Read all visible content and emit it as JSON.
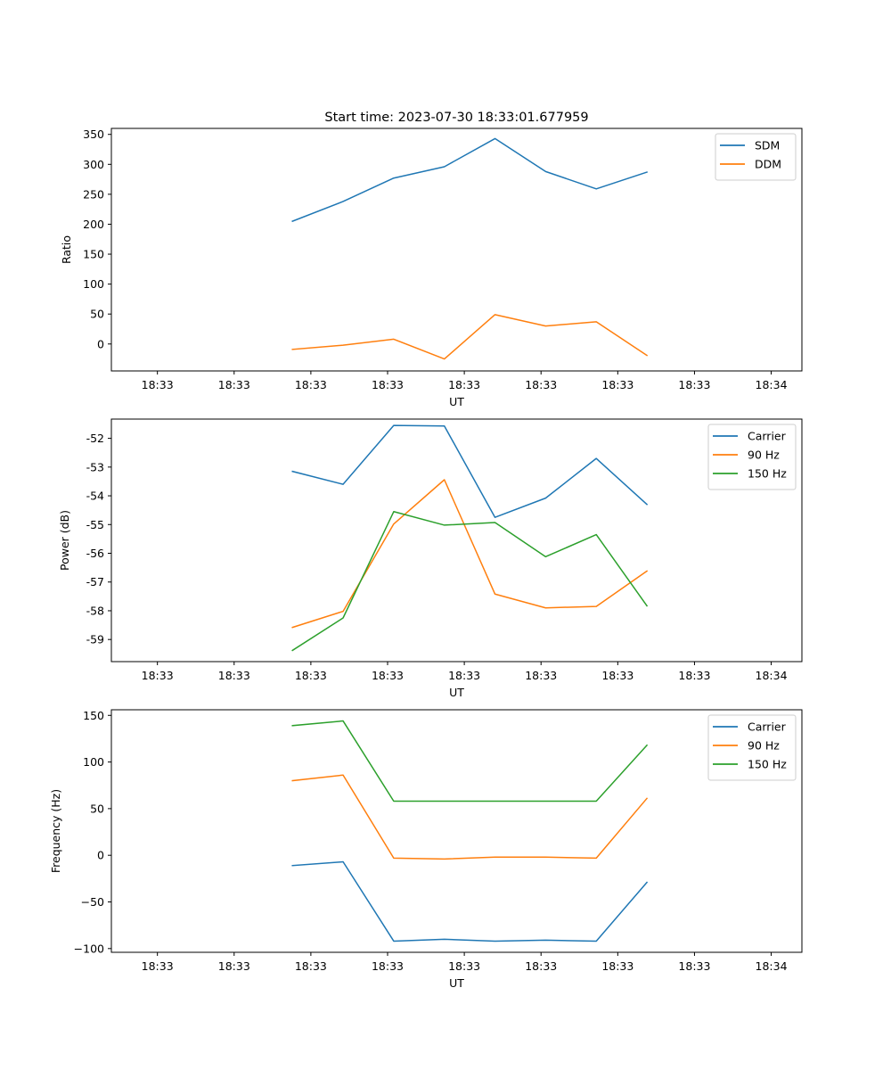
{
  "chart_data": [
    {
      "type": "line",
      "title": "Start time: 2023-07-30 18:33:01.677959",
      "xlabel": "UT",
      "ylabel": "Ratio",
      "x_domain_seconds": [
        0.12,
        0.57
      ],
      "xtick_seconds": [
        0.15,
        0.2,
        0.25,
        0.3,
        0.35,
        0.4,
        0.45,
        0.5,
        0.55
      ],
      "xtick_labels": [
        "18:33",
        "18:33",
        "18:33",
        "18:33",
        "18:33",
        "18:33",
        "18:33",
        "18:33",
        "18:34"
      ],
      "x_seconds": [
        0.238,
        0.271,
        0.304,
        0.337,
        0.37,
        0.403,
        0.436,
        0.469
      ],
      "ylim": [
        -45,
        360
      ],
      "yticks": [
        0,
        50,
        100,
        150,
        200,
        250,
        300,
        350
      ],
      "legend_position": "upper right",
      "grid": false,
      "series": [
        {
          "name": "SDM",
          "color": "#1f77b4",
          "values": [
            205,
            238,
            277,
            296,
            343,
            288,
            259,
            287
          ]
        },
        {
          "name": "DDM",
          "color": "#ff7f0e",
          "values": [
            -9,
            -2,
            8,
            -25,
            49,
            30,
            37,
            -19
          ]
        }
      ]
    },
    {
      "type": "line",
      "title": "",
      "xlabel": "UT",
      "ylabel": "Power (dB)",
      "x_domain_seconds": [
        0.12,
        0.57
      ],
      "xtick_seconds": [
        0.15,
        0.2,
        0.25,
        0.3,
        0.35,
        0.4,
        0.45,
        0.5,
        0.55
      ],
      "xtick_labels": [
        "18:33",
        "18:33",
        "18:33",
        "18:33",
        "18:33",
        "18:33",
        "18:33",
        "18:33",
        "18:34"
      ],
      "x_seconds": [
        0.238,
        0.271,
        0.304,
        0.337,
        0.37,
        0.403,
        0.436,
        0.469
      ],
      "ylim": [
        -59.77,
        -51.33
      ],
      "yticks": [
        -59,
        -58,
        -57,
        -56,
        -55,
        -54,
        -53,
        -52
      ],
      "legend_position": "upper right",
      "grid": false,
      "series": [
        {
          "name": "Carrier",
          "color": "#1f77b4",
          "values": [
            -53.15,
            -53.6,
            -51.55,
            -51.57,
            -54.75,
            -54.08,
            -52.7,
            -54.3
          ]
        },
        {
          "name": "90 Hz",
          "color": "#ff7f0e",
          "values": [
            -58.58,
            -58.02,
            -54.98,
            -53.44,
            -57.42,
            -57.9,
            -57.85,
            -56.62
          ]
        },
        {
          "name": "150 Hz",
          "color": "#2ca02c",
          "values": [
            -59.38,
            -58.25,
            -54.55,
            -55.02,
            -54.93,
            -56.12,
            -55.35,
            -57.83
          ]
        }
      ]
    },
    {
      "type": "line",
      "title": "",
      "xlabel": "UT",
      "ylabel": "Frequency (Hz)",
      "x_domain_seconds": [
        0.12,
        0.57
      ],
      "xtick_seconds": [
        0.15,
        0.2,
        0.25,
        0.3,
        0.35,
        0.4,
        0.45,
        0.5,
        0.55
      ],
      "xtick_labels": [
        "18:33",
        "18:33",
        "18:33",
        "18:33",
        "18:33",
        "18:33",
        "18:33",
        "18:33",
        "18:34"
      ],
      "x_seconds": [
        0.238,
        0.271,
        0.304,
        0.337,
        0.37,
        0.403,
        0.436,
        0.469
      ],
      "ylim": [
        -104,
        156
      ],
      "yticks": [
        -100,
        -50,
        0,
        50,
        100,
        150
      ],
      "ytick_labels": [
        "−100",
        "−50",
        "0",
        "50",
        "100",
        "150"
      ],
      "legend_position": "upper right",
      "grid": false,
      "series": [
        {
          "name": "Carrier",
          "color": "#1f77b4",
          "values": [
            -11,
            -7,
            -92,
            -90,
            -92,
            -91,
            -92,
            -29
          ]
        },
        {
          "name": "90 Hz",
          "color": "#ff7f0e",
          "values": [
            80,
            86,
            -3,
            -4,
            -2,
            -2,
            -3,
            61
          ]
        },
        {
          "name": "150 Hz",
          "color": "#2ca02c",
          "values": [
            139,
            144,
            58,
            58,
            58,
            58,
            58,
            118
          ]
        }
      ]
    }
  ]
}
